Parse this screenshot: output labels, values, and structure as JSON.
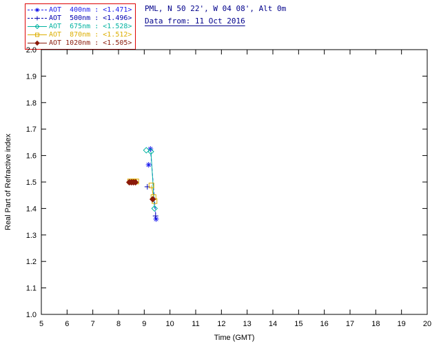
{
  "header": {
    "site_line": "PML, N 50 22', W 04 08', Alt 0m",
    "date_line": "Data from: 11 Oct 2016",
    "text_color": "#00008b"
  },
  "legend": {
    "border_color": "#dd0000",
    "entries": [
      {
        "label": "AOT  400nm : <1.471>"
      },
      {
        "label": "AOT  500nm : <1.496>"
      },
      {
        "label": "AOT  675nm : <1.528>"
      },
      {
        "label": "AOT  870nm : <1.512>"
      },
      {
        "label": "AOT 1020nm : <1.505>"
      }
    ]
  },
  "chart_data": {
    "type": "scatter",
    "title": "",
    "xlabel": "Time (GMT)",
    "ylabel": "Real Part of Refractive index",
    "xlim": [
      5,
      20
    ],
    "ylim": [
      1.0,
      2.0
    ],
    "xtick_step": 1,
    "ytick_step": 0.1,
    "grid": false,
    "legend_position": "top-left",
    "series": [
      {
        "name": "AOT 400nm",
        "mean_value": 1.471,
        "color": "#1a1aee",
        "marker": "asterisk",
        "line": "dashed",
        "segments": [
          [
            [
              9.17,
              1.565
            ]
          ],
          [
            [
              9.24,
              1.625
            ],
            [
              9.46,
              1.36
            ]
          ]
        ]
      },
      {
        "name": "AOT 500nm",
        "mean_value": 1.496,
        "color": "#0000b0",
        "marker": "plus",
        "line": "dashed",
        "segments": [
          [
            [
              9.12,
              1.482
            ]
          ],
          [
            [
              9.44,
              1.372
            ]
          ]
        ]
      },
      {
        "name": "AOT 675nm",
        "mean_value": 1.528,
        "color": "#00b2a0",
        "marker": "diamond-open",
        "line": "solid",
        "segments": [
          [
            [
              9.08,
              1.62
            ]
          ],
          [
            [
              9.26,
              1.615
            ],
            [
              9.4,
              1.4
            ]
          ]
        ]
      },
      {
        "name": "AOT 870nm",
        "mean_value": 1.512,
        "color": "#dcae00",
        "marker": "square-open",
        "line": "solid",
        "segments": [
          [
            [
              8.45,
              1.502
            ],
            [
              8.53,
              1.502
            ],
            [
              8.61,
              1.502
            ],
            [
              8.69,
              1.502
            ]
          ],
          [
            [
              9.28,
              1.487
            ],
            [
              9.36,
              1.443
            ],
            [
              9.4,
              1.428
            ]
          ]
        ]
      },
      {
        "name": "AOT 1020nm",
        "mean_value": 1.505,
        "color": "#8b1a0a",
        "marker": "diamond-filled",
        "line": "solid",
        "segments": [
          [
            [
              8.42,
              1.499
            ],
            [
              8.5,
              1.499
            ],
            [
              8.58,
              1.499
            ],
            [
              8.66,
              1.499
            ]
          ],
          [
            [
              9.33,
              1.435
            ]
          ]
        ]
      }
    ]
  }
}
